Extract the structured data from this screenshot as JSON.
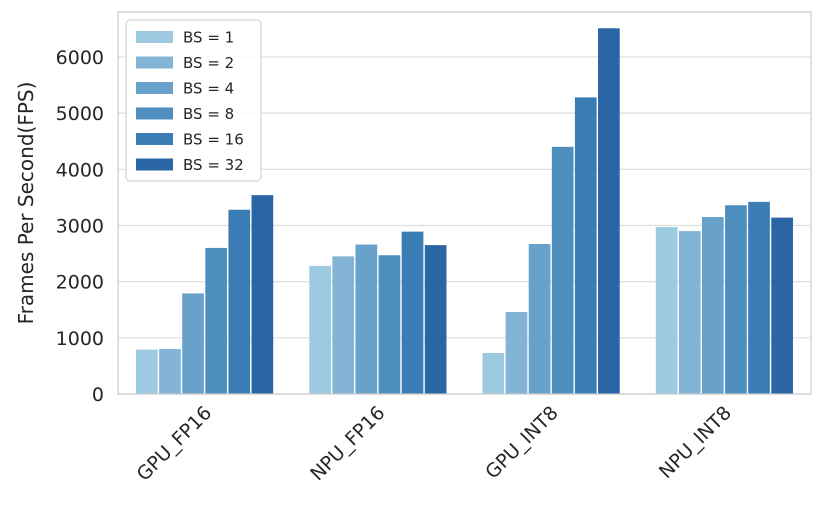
{
  "chart_data": {
    "type": "bar",
    "title": "",
    "xlabel": "",
    "ylabel": "Frames Per Second(FPS)",
    "ylim": [
      0,
      6800
    ],
    "yticks": [
      0,
      1000,
      2000,
      3000,
      4000,
      5000,
      6000
    ],
    "grid": true,
    "legend_position": "top-left",
    "categories": [
      "GPU_FP16",
      "NPU_FP16",
      "GPU_INT8",
      "NPU_INT8"
    ],
    "series": [
      {
        "name": "BS = 1",
        "color": "#9ecae1",
        "values": [
          790,
          2280,
          730,
          2970
        ]
      },
      {
        "name": "BS = 2",
        "color": "#83b4d6",
        "values": [
          800,
          2450,
          1460,
          2900
        ]
      },
      {
        "name": "BS = 4",
        "color": "#68a1c9",
        "values": [
          1790,
          2660,
          2670,
          3150
        ]
      },
      {
        "name": "BS = 8",
        "color": "#4e8fbf",
        "values": [
          2600,
          2470,
          4400,
          3360
        ]
      },
      {
        "name": "BS = 16",
        "color": "#3a7db5",
        "values": [
          3280,
          2890,
          5280,
          3420
        ]
      },
      {
        "name": "BS = 32",
        "color": "#2a65a5",
        "values": [
          3540,
          2650,
          6510,
          3140
        ]
      }
    ]
  }
}
